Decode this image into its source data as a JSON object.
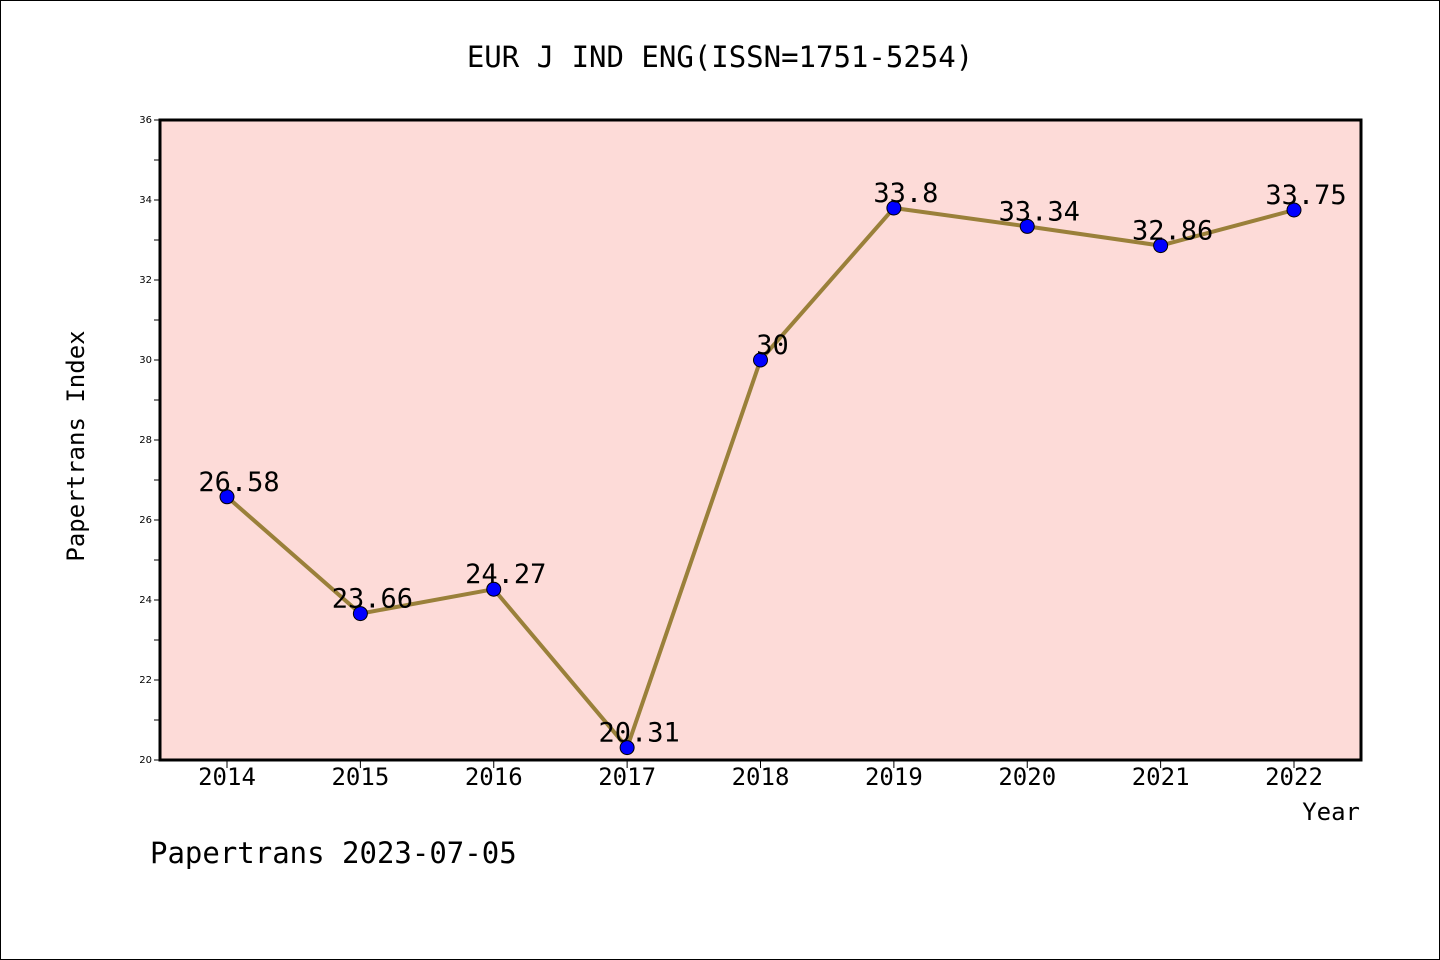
{
  "chart_data": {
    "type": "line",
    "title": "EUR J IND ENG(ISSN=1751-5254)",
    "xlabel": "Year",
    "ylabel": "Papertrans Index",
    "footer": "Papertrans 2023-07-05",
    "categories": [
      "2014",
      "2015",
      "2016",
      "2017",
      "2018",
      "2019",
      "2020",
      "2021",
      "2022"
    ],
    "values": [
      26.58,
      23.66,
      24.27,
      20.31,
      30,
      33.8,
      33.34,
      32.86,
      33.75
    ],
    "point_labels": [
      "26.58",
      "23.66",
      "24.27",
      "20.31",
      "30",
      "33.8",
      "33.34",
      "32.86",
      "33.75"
    ],
    "ylim": [
      20,
      36
    ],
    "yticks": [
      "20",
      "22",
      "24",
      "26",
      "28",
      "30",
      "32",
      "34",
      "36"
    ],
    "grid": false,
    "legend": "none",
    "colors": {
      "plot_background": "#fddbd8",
      "line": "#9a803a",
      "marker": "#0000ff",
      "axis": "#000000"
    }
  }
}
